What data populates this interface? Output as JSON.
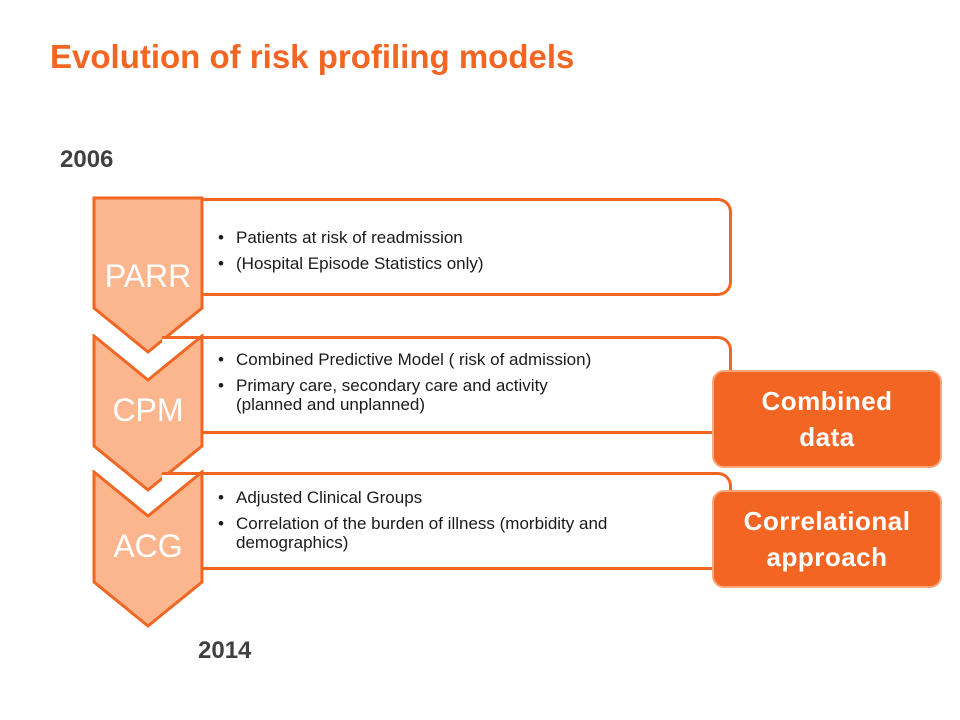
{
  "title": "Evolution of risk profiling models",
  "year_start": "2006",
  "year_end": "2014",
  "stages": [
    {
      "label": "PARR",
      "bullets": [
        "Patients at risk of readmission",
        "(Hospital Episode Statistics only)"
      ]
    },
    {
      "label": "CPM",
      "bullets": [
        "Combined Predictive Model ( risk of admission)",
        "Primary care, secondary care and activity (planned and unplanned)"
      ]
    },
    {
      "label": "ACG",
      "bullets": [
        "Adjusted Clinical Groups",
        "Correlation of the burden of illness (morbidity and demographics)"
      ]
    }
  ],
  "callouts": [
    {
      "lines": [
        "Combined",
        "data"
      ]
    },
    {
      "lines": [
        "Correlational",
        "approach"
      ]
    }
  ],
  "colors": {
    "accent": "#f26522",
    "chevron_fill": "#fbb68d",
    "year_text": "#404040"
  }
}
